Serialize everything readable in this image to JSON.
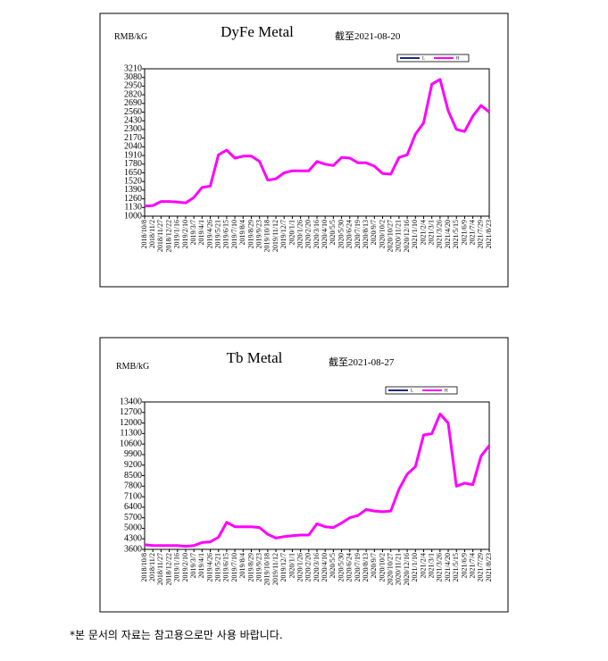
{
  "chart_data": [
    {
      "type": "line",
      "ylabel": "RMB/kG",
      "title": "DyFe Metal",
      "subtitle": "截至2021-08-20",
      "categories": [
        "2018/10/8",
        "2018/11/2",
        "2018/11/27",
        "2018/12/22",
        "2019/1/16",
        "2019/2/10",
        "2019/3/7",
        "2019/4/1",
        "2019/4/26",
        "2019/5/21",
        "2019/6/15",
        "2019/7/10",
        "2019/8/4",
        "2019/8/29",
        "2019/9/23",
        "2019/10/18",
        "2019/11/12",
        "2019/12/7",
        "2020/1/1",
        "2020/1/26",
        "2020/2/20",
        "2020/3/16",
        "2020/4/10",
        "2020/5/5",
        "2020/5/30",
        "2020/6/24",
        "2020/7/19",
        "2020/8/13",
        "2020/9/7",
        "2020/10/2",
        "2020/10/27",
        "2020/11/21",
        "2020/12/16",
        "2021/1/10",
        "2021/2/4",
        "2021/3/1",
        "2021/3/26",
        "2021/4/20",
        "2021/5/15",
        "2021/6/9",
        "2021/7/4",
        "2021/7/29",
        "2021/8/23"
      ],
      "series": [
        {
          "name": "L",
          "color": "#1f2a7a",
          "values": [
            1150,
            1160,
            1220,
            1220,
            1210,
            1200,
            1280,
            1430,
            1450,
            1920,
            1990,
            1870,
            1900,
            1900,
            1820,
            1540,
            1560,
            1650,
            1680,
            1680,
            1680,
            1820,
            1780,
            1760,
            1880,
            1870,
            1800,
            1800,
            1750,
            1640,
            1630,
            1880,
            1920,
            2230,
            2400,
            2980,
            3050,
            2580,
            2300,
            2270,
            2500,
            2660,
            2560
          ]
        },
        {
          "name": "H",
          "color": "#ff00ff",
          "values": [
            1150,
            1160,
            1220,
            1220,
            1210,
            1200,
            1280,
            1430,
            1450,
            1920,
            1990,
            1870,
            1900,
            1900,
            1820,
            1540,
            1560,
            1650,
            1680,
            1680,
            1680,
            1820,
            1780,
            1760,
            1880,
            1870,
            1800,
            1800,
            1750,
            1640,
            1630,
            1880,
            1920,
            2230,
            2400,
            2980,
            3050,
            2580,
            2300,
            2270,
            2500,
            2660,
            2560
          ]
        }
      ],
      "ylim": [
        1000,
        3210
      ],
      "yticks": [
        1000,
        1130,
        1260,
        1390,
        1520,
        1650,
        1780,
        1910,
        2040,
        2170,
        2300,
        2430,
        2560,
        2690,
        2820,
        2950,
        3080,
        3210
      ],
      "grid": false,
      "legend": "top-right"
    },
    {
      "type": "line",
      "ylabel": "RMB/kG",
      "title": "Tb Metal",
      "subtitle": "截至2021-08-27",
      "categories": [
        "2018/10/8",
        "2018/11/2",
        "2018/11/27",
        "2018/12/22",
        "2019/1/16",
        "2019/2/10",
        "2019/3/7",
        "2019/4/1",
        "2019/4/26",
        "2019/5/21",
        "2019/6/15",
        "2019/7/10",
        "2019/8/4",
        "2019/8/29",
        "2019/9/23",
        "2019/10/18",
        "2019/11/12",
        "2019/12/7",
        "2020/1/1",
        "2020/1/26",
        "2020/2/20",
        "2020/3/16",
        "2020/4/10",
        "2020/5/5",
        "2020/5/30",
        "2020/6/24",
        "2020/7/19",
        "2020/8/13",
        "2020/9/7",
        "2020/10/2",
        "2020/10/27",
        "2020/11/21",
        "2020/12/16",
        "2021/1/10",
        "2021/2/4",
        "2021/3/1",
        "2021/3/26",
        "2021/4/20",
        "2021/5/15",
        "2021/6/9",
        "2021/7/4",
        "2021/7/29",
        "2021/8/23"
      ],
      "series": [
        {
          "name": "L",
          "color": "#1f2a7a",
          "values": [
            3900,
            3850,
            3850,
            3850,
            3850,
            3800,
            3850,
            4050,
            4100,
            4400,
            5400,
            5100,
            5100,
            5100,
            5050,
            4600,
            4350,
            4450,
            4500,
            4550,
            4550,
            5300,
            5100,
            5050,
            5350,
            5700,
            5850,
            6250,
            6150,
            6100,
            6150,
            7600,
            8600,
            9100,
            11200,
            11300,
            12600,
            12000,
            7800,
            8000,
            7900,
            9800,
            10500
          ]
        },
        {
          "name": "H",
          "color": "#ff00ff",
          "values": [
            3900,
            3850,
            3850,
            3850,
            3850,
            3800,
            3850,
            4050,
            4100,
            4400,
            5400,
            5100,
            5100,
            5100,
            5050,
            4600,
            4350,
            4450,
            4500,
            4550,
            4550,
            5300,
            5100,
            5050,
            5350,
            5700,
            5850,
            6250,
            6150,
            6100,
            6150,
            7600,
            8600,
            9100,
            11200,
            11300,
            12600,
            12000,
            7800,
            8000,
            7900,
            9800,
            10500
          ]
        }
      ],
      "ylim": [
        3600,
        13400
      ],
      "yticks": [
        3600,
        4300,
        5000,
        5700,
        6400,
        7100,
        7800,
        8500,
        9200,
        9900,
        10600,
        11300,
        12000,
        12700,
        13400
      ],
      "grid": false,
      "legend": "top-right"
    }
  ],
  "footnote": "*본 문서의 자료는 참고용으로만 사용 바랍니다."
}
